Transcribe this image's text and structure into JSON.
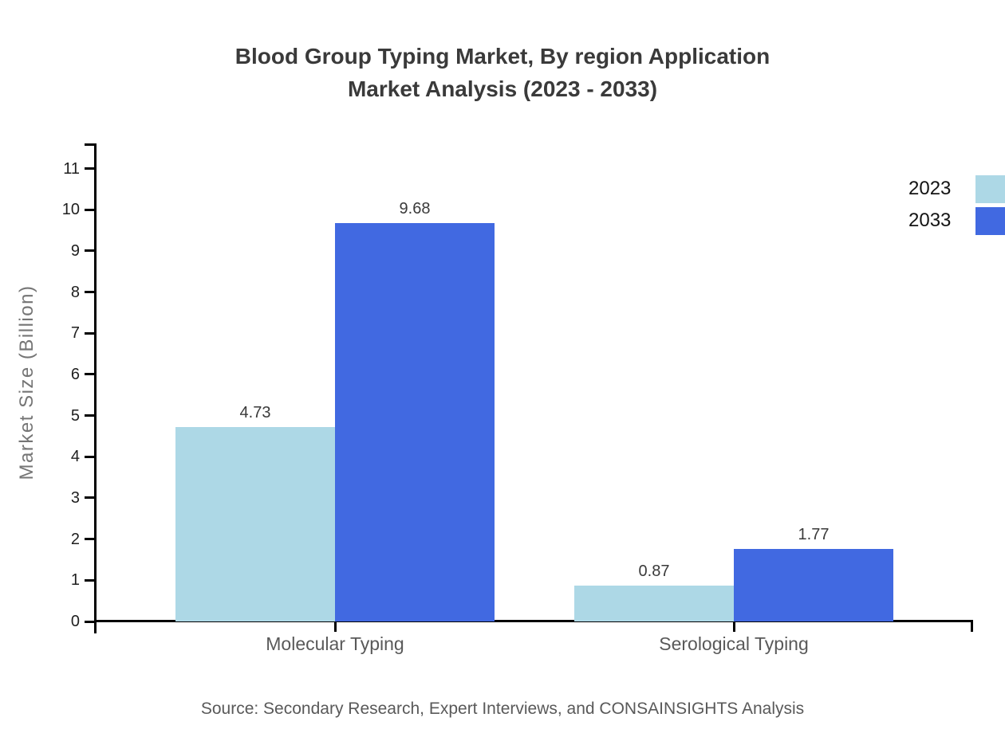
{
  "title": {
    "line1": "Blood Group Typing Market, By region Application",
    "line2": "Market Analysis (2023 - 2033)"
  },
  "source_note": "Source: Secondary Research, Expert Interviews, and CONSAINSIGHTS Analysis",
  "chart_data": {
    "type": "bar",
    "title": "Blood Group Typing Market, By region Application Market Analysis (2023 - 2033)",
    "categories": [
      "Molecular Typing",
      "Serological Typing"
    ],
    "series": [
      {
        "name": "2023",
        "color": "#ADD8E6",
        "values": [
          4.73,
          0.87
        ]
      },
      {
        "name": "2033",
        "color": "#4169E1",
        "values": [
          9.68,
          1.77
        ]
      }
    ],
    "value_labels": [
      "4.73",
      "9.68",
      "0.87",
      "1.77"
    ],
    "xlabel": "",
    "ylabel": "Market Size (Billion)",
    "ylim": [
      0,
      11.62
    ],
    "yticks": [
      0,
      1,
      2,
      3,
      4,
      5,
      6,
      7,
      8,
      9,
      10,
      11
    ],
    "grid": false,
    "legend": {
      "position": "top-right",
      "entries": [
        "2023",
        "2033"
      ]
    }
  },
  "colors": {
    "series_2023": "#ADD8E6",
    "series_2033": "#4169E1",
    "title_text": "#3A3A3A",
    "axis": "#000000",
    "tick_label": "#1F1F1F",
    "category_label": "#595959",
    "y_axis_title": "#757575",
    "legend_text": "#141414",
    "value_label": "#3A3A3A",
    "source_text": "#595959",
    "background": "#FFFFFF"
  }
}
